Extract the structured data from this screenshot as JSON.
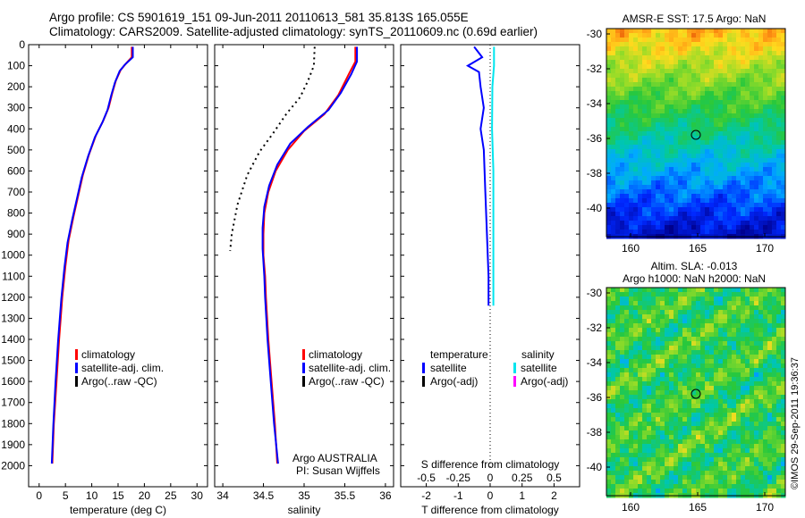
{
  "header": {
    "line1": "Argo profile: CS 5901619_151 09-Jun-2011 20110613_581 35.813S 165.055E",
    "line2": "Climatology: CARS2009. Satellite-adjusted climatology: synTS_20110609.nc (0.69d earlier)"
  },
  "colors": {
    "climatology": "#ff0000",
    "satellite": "#0000ff",
    "argo": "#000000",
    "salinity_satellite": "#00e5ee",
    "salinity_argo": "#ff00ff"
  },
  "depth_axis": {
    "ticks": [
      0,
      100,
      200,
      300,
      400,
      500,
      600,
      700,
      800,
      900,
      1000,
      1100,
      1200,
      1300,
      1400,
      1500,
      1600,
      1700,
      1800,
      1900,
      2000
    ],
    "range": [
      0,
      2100
    ]
  },
  "chart_data": [
    {
      "type": "line",
      "id": "temperature",
      "xlabel": "temperature (deg C)",
      "xticks": [
        0,
        5,
        10,
        15,
        20,
        25,
        30
      ],
      "xlim": [
        -2,
        32
      ],
      "ylim": [
        0,
        2100
      ],
      "legend": [
        "climatology",
        "satellite-adj. clim.",
        "Argo(..raw -QC)"
      ],
      "series": [
        {
          "name": "climatology",
          "color": "#ff0000",
          "points": [
            [
              17.6,
              10
            ],
            [
              17.6,
              60
            ],
            [
              16.5,
              90
            ],
            [
              15.5,
              120
            ],
            [
              14.6,
              170
            ],
            [
              13.9,
              230
            ],
            [
              13.2,
              300
            ],
            [
              12.2,
              360
            ],
            [
              10.8,
              430
            ],
            [
              9.5,
              520
            ],
            [
              8.3,
              620
            ],
            [
              7.4,
              720
            ],
            [
              6.5,
              820
            ],
            [
              5.6,
              930
            ],
            [
              5.0,
              1050
            ],
            [
              4.4,
              1200
            ],
            [
              3.8,
              1400
            ],
            [
              3.3,
              1600
            ],
            [
              2.8,
              1800
            ],
            [
              2.5,
              1990
            ]
          ]
        },
        {
          "name": "satellite-adj. clim.",
          "color": "#0000ff",
          "points": [
            [
              17.8,
              10
            ],
            [
              17.8,
              60
            ],
            [
              16.3,
              95
            ],
            [
              15.3,
              125
            ],
            [
              14.4,
              180
            ],
            [
              13.7,
              240
            ],
            [
              13.0,
              310
            ],
            [
              12.0,
              370
            ],
            [
              10.6,
              440
            ],
            [
              9.3,
              530
            ],
            [
              8.1,
              630
            ],
            [
              7.2,
              730
            ],
            [
              6.3,
              830
            ],
            [
              5.4,
              940
            ],
            [
              4.8,
              1060
            ],
            [
              4.2,
              1210
            ],
            [
              3.6,
              1410
            ],
            [
              3.1,
              1610
            ],
            [
              2.7,
              1810
            ],
            [
              2.4,
              1990
            ]
          ]
        }
      ]
    },
    {
      "type": "line",
      "id": "salinity",
      "xlabel": "salinity",
      "xticks": [
        34,
        34.5,
        35,
        35.5,
        36
      ],
      "xlim": [
        33.9,
        36.1
      ],
      "ylim": [
        0,
        2100
      ],
      "legend": [
        "climatology",
        "satellite-adj. clim.",
        "Argo(..raw -QC)"
      ],
      "annotation": [
        "Argo AUSTRALIA",
        "PI: Susan Wijffels"
      ],
      "series": [
        {
          "name": "climatology",
          "color": "#ff0000",
          "points": [
            [
              35.63,
              10
            ],
            [
              35.63,
              80
            ],
            [
              35.55,
              140
            ],
            [
              35.42,
              240
            ],
            [
              35.25,
              330
            ],
            [
              35.0,
              410
            ],
            [
              34.8,
              500
            ],
            [
              34.65,
              600
            ],
            [
              34.56,
              700
            ],
            [
              34.51,
              800
            ],
            [
              34.5,
              900
            ],
            [
              34.5,
              1000
            ],
            [
              34.52,
              1100
            ],
            [
              34.53,
              1200
            ],
            [
              34.56,
              1400
            ],
            [
              34.6,
              1600
            ],
            [
              34.64,
              1800
            ],
            [
              34.67,
              1990
            ]
          ]
        },
        {
          "name": "satellite-adj. clim.",
          "color": "#0000ff",
          "points": [
            [
              35.65,
              10
            ],
            [
              35.65,
              80
            ],
            [
              35.58,
              140
            ],
            [
              35.45,
              230
            ],
            [
              35.3,
              310
            ],
            [
              35.05,
              390
            ],
            [
              34.83,
              470
            ],
            [
              34.67,
              570
            ],
            [
              34.57,
              670
            ],
            [
              34.51,
              770
            ],
            [
              34.49,
              870
            ],
            [
              34.49,
              970
            ],
            [
              34.51,
              1100
            ],
            [
              34.52,
              1200
            ],
            [
              34.55,
              1400
            ],
            [
              34.59,
              1600
            ],
            [
              34.63,
              1800
            ],
            [
              34.68,
              1990
            ]
          ]
        },
        {
          "name": "Argo(..raw -QC)",
          "color": "#000000",
          "dotted": true,
          "points": [
            [
              35.13,
              10
            ],
            [
              35.12,
              100
            ],
            [
              35.05,
              170
            ],
            [
              34.95,
              250
            ],
            [
              34.78,
              330
            ],
            [
              34.62,
              420
            ],
            [
              34.45,
              510
            ],
            [
              34.3,
              620
            ],
            [
              34.18,
              760
            ],
            [
              34.11,
              900
            ],
            [
              34.09,
              980
            ]
          ]
        }
      ]
    },
    {
      "type": "line",
      "id": "difference",
      "xlabel": "T difference from climatology",
      "xlabel_top": "S difference from climatology",
      "xticks_T": [
        "-2",
        "-1",
        "0",
        "1",
        "2"
      ],
      "xticks_S": [
        "-0.5",
        "-0.25",
        "0",
        "0.25",
        "0.5"
      ],
      "xlim": [
        -2.8,
        2.8
      ],
      "ylim": [
        0,
        2100
      ],
      "legend_temperature_title": "temperature",
      "legend_salinity_title": "salinity",
      "legend_temperature": [
        "satellite",
        "Argo(-adj)"
      ],
      "legend_salinity": [
        "satellite",
        "Argo(-adj)"
      ],
      "series": [
        {
          "name": "temperature satellite",
          "color": "#0000ff",
          "points": [
            [
              -0.5,
              10
            ],
            [
              -0.25,
              60
            ],
            [
              -0.7,
              100
            ],
            [
              -0.35,
              130
            ],
            [
              -0.3,
              200
            ],
            [
              -0.2,
              300
            ],
            [
              -0.3,
              400
            ],
            [
              -0.2,
              500
            ],
            [
              -0.15,
              700
            ],
            [
              -0.1,
              900
            ],
            [
              -0.05,
              1100
            ],
            [
              -0.05,
              1240
            ]
          ]
        },
        {
          "name": "salinity satellite",
          "color": "#00e5ee",
          "points": [
            [
              0.12,
              10
            ],
            [
              0.12,
              100
            ],
            [
              0.07,
              200
            ],
            [
              0.06,
              400
            ],
            [
              0.1,
              600
            ],
            [
              0.1,
              800
            ],
            [
              0.1,
              1000
            ],
            [
              0.1,
              1240
            ]
          ]
        }
      ]
    }
  ],
  "maps": [
    {
      "title": "AMSR-E SST: 17.5  Argo: NaN",
      "yticks": [
        "-30",
        "-32",
        "-34",
        "-36",
        "-38",
        "-40"
      ],
      "xticks": [
        "160",
        "165",
        "170"
      ]
    },
    {
      "title_line1": "Altim. SLA: -0.013",
      "title_line2": "Argo h1000: NaN h2000: NaN",
      "yticks": [
        "-30",
        "-32",
        "-34",
        "-36",
        "-38",
        "-40"
      ],
      "xticks": [
        "160",
        "165",
        "170"
      ]
    }
  ],
  "footer_stamp": "©IMOS 29-Sep-2011 19:36:37"
}
